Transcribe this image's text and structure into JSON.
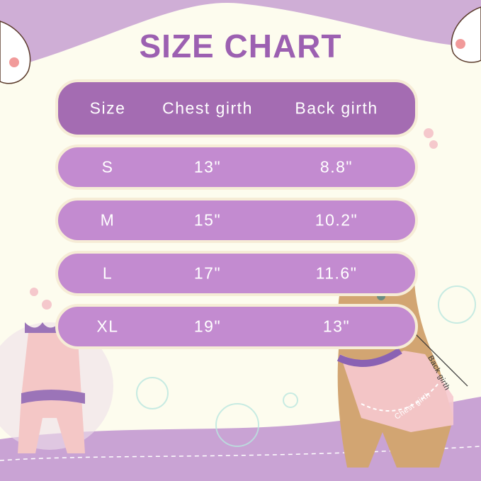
{
  "title": "SIZE CHART",
  "table": {
    "headers": [
      "Size",
      "Chest girth",
      "Back girth"
    ],
    "rows": [
      [
        "S",
        "13\"",
        "8.8\""
      ],
      [
        "M",
        "15\"",
        "10.2\""
      ],
      [
        "L",
        "17\"",
        "11.6\""
      ],
      [
        "XL",
        "19\"",
        "13\""
      ]
    ]
  },
  "diagram_labels": {
    "back": "Back girth",
    "chest": "Chest girth"
  },
  "colors": {
    "title": "#9c60b1",
    "header_row": "#a46cb2",
    "data_row": "#c38bd0",
    "background": "#fdfcee"
  }
}
